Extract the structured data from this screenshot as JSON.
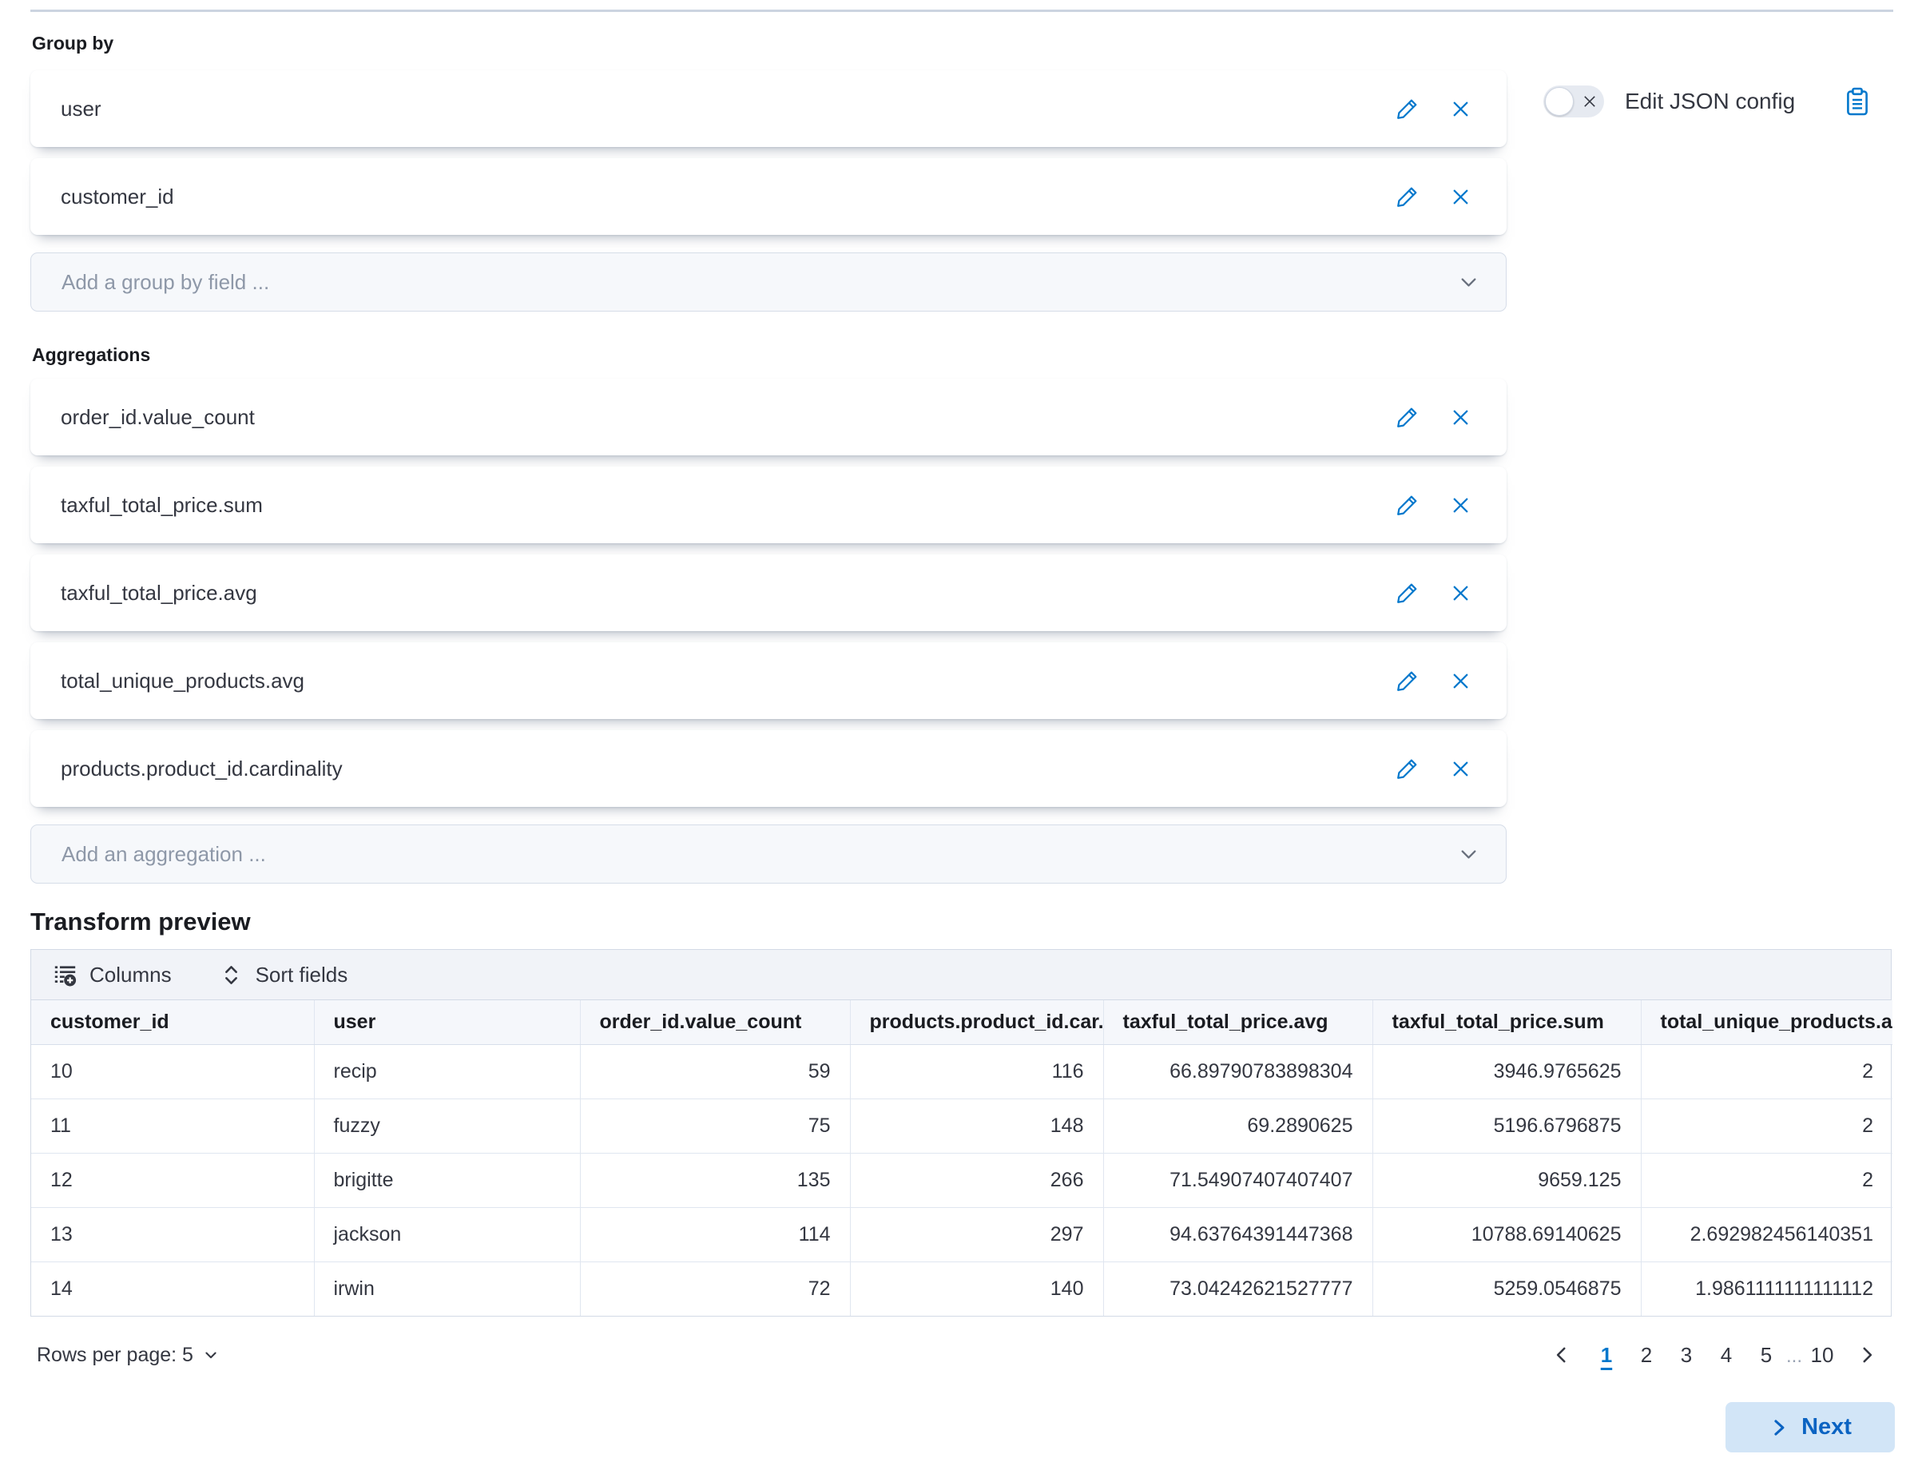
{
  "colors": {
    "primary": "#0077cc",
    "text": "#343741",
    "next_button_bg": "#d2e5f7",
    "next_button_text": "#0b63c2"
  },
  "icons": {
    "edit": "pencil-icon",
    "remove": "x-icon",
    "toggle_off": "x-icon",
    "copy": "clipboard-icon",
    "columns": "list-add-icon",
    "sort": "sortable-icon",
    "dropdown": "chevron-down-icon",
    "previous_page": "chevron-left-icon",
    "next_page": "chevron-right-icon",
    "next_step": "chevron-right-icon"
  },
  "group_by": {
    "label": "Group by",
    "items": [
      {
        "label": "user"
      },
      {
        "label": "customer_id"
      }
    ],
    "add_placeholder": "Add a group by field ..."
  },
  "aggregations": {
    "label": "Aggregations",
    "items": [
      {
        "label": "order_id.value_count"
      },
      {
        "label": "taxful_total_price.sum"
      },
      {
        "label": "taxful_total_price.avg"
      },
      {
        "label": "total_unique_products.avg"
      },
      {
        "label": "products.product_id.cardinality"
      }
    ],
    "add_placeholder": "Add an aggregation ..."
  },
  "json_config": {
    "label": "Edit JSON config",
    "toggle_state": "off"
  },
  "preview": {
    "title": "Transform preview",
    "toolbar": {
      "columns_label": "Columns",
      "sort_label": "Sort fields"
    },
    "columns": [
      {
        "label": "customer_id",
        "cell_align": "left"
      },
      {
        "label": "user",
        "cell_align": "left"
      },
      {
        "label": "order_id.value_count",
        "cell_align": "right"
      },
      {
        "label": "products.product_id.car...",
        "cell_align": "right"
      },
      {
        "label": "taxful_total_price.avg",
        "cell_align": "right"
      },
      {
        "label": "taxful_total_price.sum",
        "cell_align": "right"
      },
      {
        "label": "total_unique_products.a...",
        "cell_align": "right"
      }
    ],
    "rows": [
      [
        "10",
        "recip",
        "59",
        "116",
        "66.89790783898304",
        "3946.9765625",
        "2"
      ],
      [
        "11",
        "fuzzy",
        "75",
        "148",
        "69.2890625",
        "5196.6796875",
        "2"
      ],
      [
        "12",
        "brigitte",
        "135",
        "266",
        "71.54907407407407",
        "9659.125",
        "2"
      ],
      [
        "13",
        "jackson",
        "114",
        "297",
        "94.63764391447368",
        "10788.69140625",
        "2.692982456140351"
      ],
      [
        "14",
        "irwin",
        "72",
        "140",
        "73.04242621527777",
        "5259.0546875",
        "1.9861111111111112"
      ]
    ],
    "rows_per_page_label": "Rows per page: 5",
    "pagination": {
      "active": "1",
      "pages": [
        {
          "label": "1",
          "active": true
        },
        {
          "label": "2"
        },
        {
          "label": "3"
        },
        {
          "label": "4"
        },
        {
          "label": "5"
        },
        {
          "label": "...",
          "ellipsis": true
        },
        {
          "label": "10"
        }
      ]
    }
  },
  "next_button": {
    "label": "Next"
  }
}
